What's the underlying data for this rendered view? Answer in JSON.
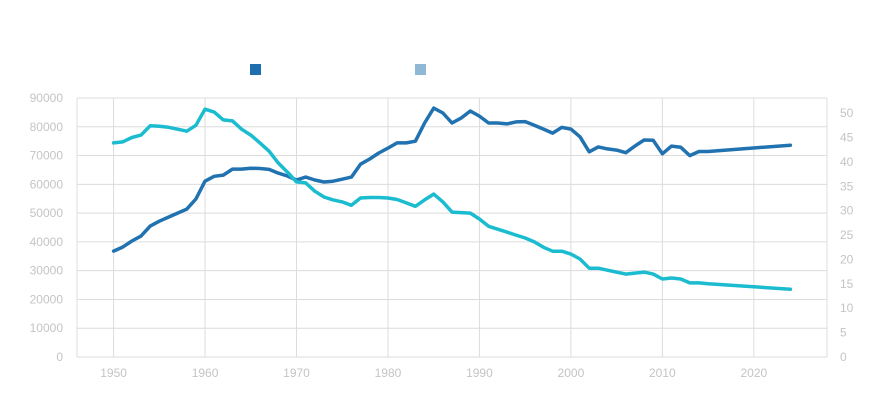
{
  "chart_data": {
    "type": "line",
    "title": "",
    "xlabel": "",
    "ylabel": "",
    "xlim": [
      1946,
      2028
    ],
    "ylim_left": [
      0,
      90000
    ],
    "ylim_right": [
      0,
      53.1
    ],
    "x_ticks": [
      1950,
      1960,
      1970,
      1980,
      1990,
      2000,
      2010,
      2020
    ],
    "y_ticks_left": [
      0,
      10000,
      20000,
      30000,
      40000,
      50000,
      60000,
      70000,
      80000,
      90000
    ],
    "y_ticks_right": [
      0,
      5,
      10,
      15,
      20,
      25,
      30,
      35,
      40,
      45,
      50
    ],
    "grid": true,
    "legend": {
      "placement": "top-center",
      "entries": [
        {
          "name": "",
          "color": "#1f6fae"
        },
        {
          "name": "",
          "color": "#8fb8d4"
        }
      ]
    },
    "series": [
      {
        "name": "",
        "axis": "left",
        "color": "#2172b0",
        "x": [
          1950,
          1951,
          1952,
          1953,
          1954,
          1955,
          1956,
          1957,
          1958,
          1959,
          1960,
          1961,
          1962,
          1963,
          1964,
          1965,
          1966,
          1967,
          1968,
          1969,
          1970,
          1971,
          1972,
          1973,
          1974,
          1975,
          1976,
          1977,
          1978,
          1979,
          1980,
          1981,
          1982,
          1983,
          1984,
          1985,
          1986,
          1987,
          1988,
          1989,
          1990,
          1991,
          1992,
          1993,
          1994,
          1995,
          1996,
          1997,
          1998,
          1999,
          2000,
          2001,
          2002,
          2003,
          2004,
          2005,
          2006,
          2007,
          2008,
          2009,
          2010,
          2011,
          2012,
          2013,
          2014,
          2015,
          2024
        ],
        "values": [
          36800,
          38200,
          40300,
          42000,
          45500,
          47200,
          48600,
          50000,
          51400,
          54900,
          61100,
          62800,
          63200,
          65300,
          65300,
          65600,
          65500,
          65200,
          63900,
          62900,
          61500,
          62500,
          61500,
          60800,
          61100,
          61800,
          62500,
          67000,
          68800,
          70900,
          72600,
          74400,
          74400,
          75000,
          81300,
          86500,
          84800,
          81300,
          83000,
          85500,
          83700,
          81300,
          81300,
          81000,
          81700,
          81800,
          80500,
          79200,
          77800,
          79800,
          79200,
          76500,
          71300,
          73000,
          72300,
          71900,
          71000,
          73300,
          75400,
          75300,
          70600,
          73300,
          72900,
          70000,
          71400,
          71400,
          73600
        ]
      },
      {
        "name": "",
        "axis": "right",
        "color": "#1bbcd0",
        "x": [
          1950,
          1951,
          1952,
          1953,
          1954,
          1955,
          1956,
          1957,
          1958,
          1959,
          1960,
          1961,
          1962,
          1963,
          1964,
          1965,
          1966,
          1967,
          1968,
          1969,
          1970,
          1971,
          1972,
          1973,
          1974,
          1975,
          1976,
          1977,
          1978,
          1979,
          1980,
          1981,
          1982,
          1983,
          1984,
          1985,
          1986,
          1987,
          1988,
          1989,
          1990,
          1991,
          1992,
          1993,
          1994,
          1995,
          1996,
          1997,
          1998,
          1999,
          2000,
          2001,
          2002,
          2003,
          2004,
          2005,
          2006,
          2007,
          2008,
          2009,
          2010,
          2011,
          2012,
          2013,
          2014,
          2015,
          2024
        ],
        "values": [
          43.9,
          44.1,
          45.0,
          45.5,
          47.4,
          47.3,
          47.1,
          46.7,
          46.3,
          47.5,
          50.8,
          50.2,
          48.6,
          48.4,
          46.7,
          45.5,
          43.9,
          42.2,
          39.8,
          37.9,
          35.9,
          35.7,
          34.0,
          32.8,
          32.2,
          31.8,
          31.1,
          32.6,
          32.7,
          32.7,
          32.6,
          32.3,
          31.6,
          30.9,
          32.2,
          33.4,
          31.8,
          29.7,
          29.6,
          29.5,
          28.3,
          26.8,
          26.2,
          25.6,
          25.0,
          24.4,
          23.6,
          22.5,
          21.7,
          21.7,
          21.1,
          20.1,
          18.2,
          18.2,
          17.8,
          17.4,
          17.0,
          17.2,
          17.4,
          17.0,
          16.0,
          16.2,
          16.0,
          15.2,
          15.2,
          15.0,
          13.9
        ]
      }
    ]
  }
}
